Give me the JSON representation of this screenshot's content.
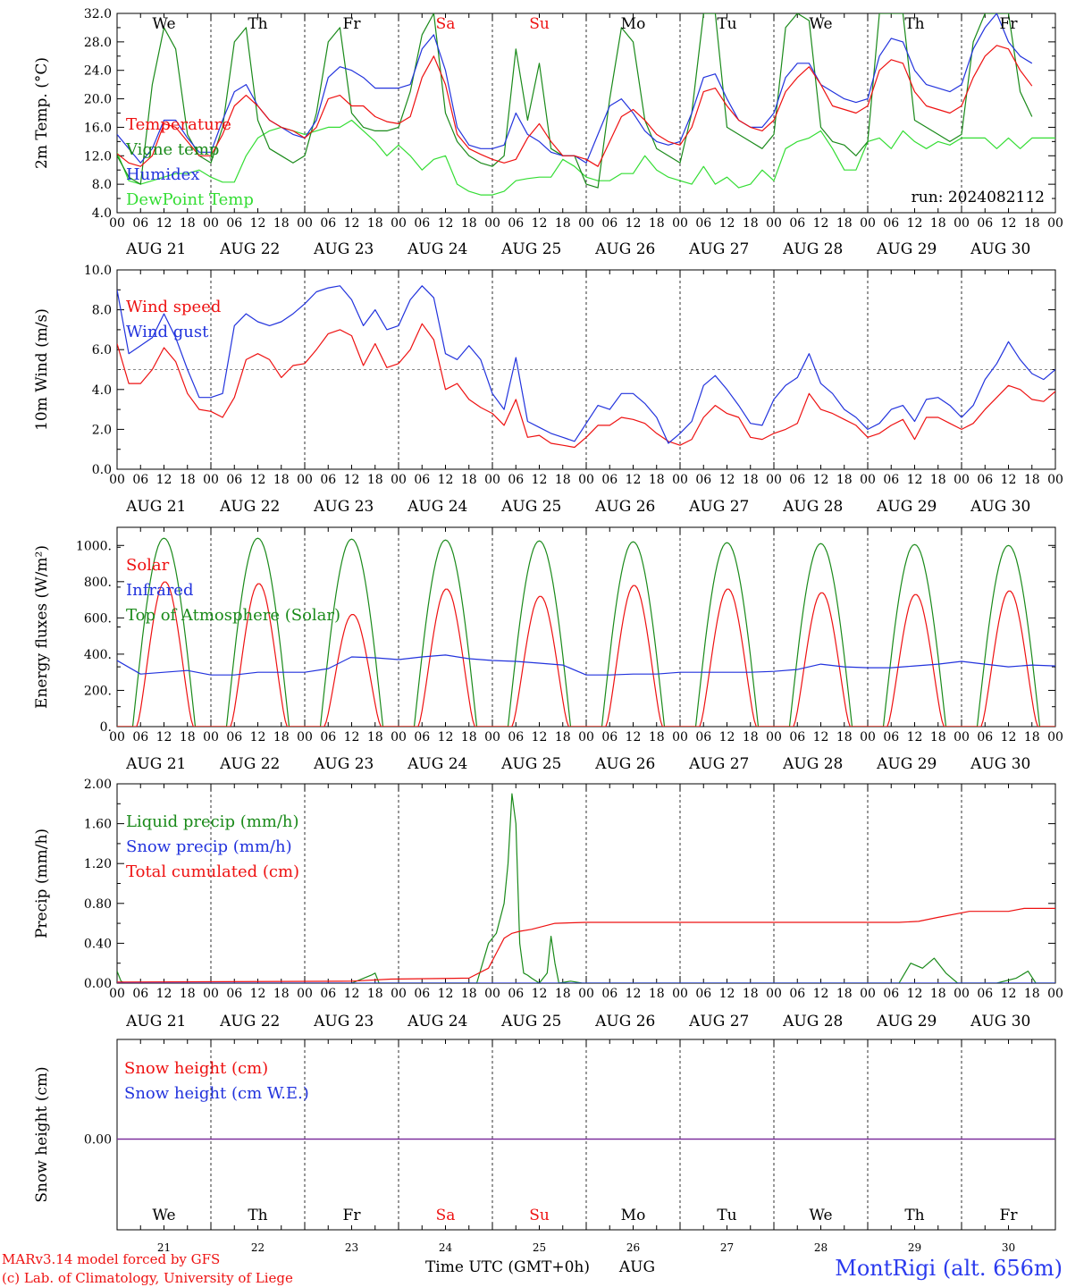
{
  "footer": {
    "model": "MARv3.14 model forced by GFS",
    "lab": "(c) Lab. of Climatology, University of Liege",
    "xaxis_title": "Time UTC (GMT+0h)",
    "month": "AUG",
    "station": "MontRigi (alt. 656m)"
  },
  "colors": {
    "red": "#ee1111",
    "blue": "#2233dd",
    "green": "#1a8a1a",
    "lightgreen": "#33dd33",
    "purple": "#7a2a9a",
    "weekend": "#ee1111"
  },
  "days": [
    {
      "dow": "We",
      "date": "AUG 21",
      "num": "21",
      "weekend": false
    },
    {
      "dow": "Th",
      "date": "AUG 22",
      "num": "22",
      "weekend": false
    },
    {
      "dow": "Fr",
      "date": "AUG 23",
      "num": "23",
      "weekend": false
    },
    {
      "dow": "Sa",
      "date": "AUG 24",
      "num": "24",
      "weekend": true
    },
    {
      "dow": "Su",
      "date": "AUG 25",
      "num": "25",
      "weekend": true
    },
    {
      "dow": "Mo",
      "date": "AUG 26",
      "num": "26",
      "weekend": false
    },
    {
      "dow": "Tu",
      "date": "AUG 27",
      "num": "27",
      "weekend": false
    },
    {
      "dow": "We",
      "date": "AUG 28",
      "num": "28",
      "weekend": false
    },
    {
      "dow": "Th",
      "date": "AUG 29",
      "num": "29",
      "weekend": false
    },
    {
      "dow": "Fr",
      "date": "AUG 30",
      "num": "30",
      "weekend": false
    }
  ],
  "hour_labels": [
    "00",
    "06",
    "12",
    "18"
  ],
  "chart_data": [
    {
      "type": "line",
      "ylabel": "2m Temp. (°C)",
      "ylim": [
        4,
        32
      ],
      "yticks": [
        "4.0",
        "8.0",
        "12.0",
        "16.0",
        "20.0",
        "24.0",
        "28.0",
        "32.0"
      ],
      "annotation": "run: 2024082112",
      "x_hours": [
        0,
        3,
        6,
        9,
        12,
        15,
        18,
        21,
        24,
        27,
        30,
        33,
        36,
        39,
        42,
        45,
        48,
        51,
        54,
        57,
        60,
        63,
        66,
        69,
        72,
        75,
        78,
        81,
        84,
        87,
        90,
        93,
        96,
        99,
        102,
        105,
        108,
        111,
        114,
        117,
        120,
        123,
        126,
        129,
        132,
        135,
        138,
        141,
        144,
        147,
        150,
        153,
        156,
        159,
        162,
        165,
        168,
        171,
        174,
        177,
        180,
        183,
        186,
        189,
        192,
        195,
        198,
        201,
        204,
        207,
        210,
        213,
        216,
        219,
        222,
        225,
        228,
        231,
        234,
        237,
        240
      ],
      "series": [
        {
          "name": "Temperature",
          "color": "red",
          "values": [
            12.3,
            11,
            10.5,
            12,
            16.5,
            16,
            14,
            12,
            12,
            15,
            19,
            20.5,
            19,
            17,
            16,
            15.5,
            14.5,
            16,
            20,
            20.5,
            19,
            19,
            17.5,
            16.8,
            16.5,
            17.5,
            23,
            26,
            22,
            15,
            13,
            12.2,
            11.5,
            11,
            11.5,
            14.5,
            16.5,
            14,
            12,
            12,
            11.5,
            10.5,
            14,
            17.5,
            18.5,
            17,
            15,
            14,
            13.5,
            16,
            21,
            21.5,
            19,
            17,
            16,
            15.5,
            17,
            21,
            23,
            24.5,
            22,
            19,
            18.5,
            18,
            19,
            24,
            25.5,
            25,
            21,
            19,
            18.5,
            18,
            19,
            23,
            26,
            27.5,
            27,
            24,
            21.8
          ]
        },
        {
          "name": "Vigne temp",
          "color": "green",
          "values": [
            12,
            9,
            8,
            22,
            30,
            27,
            15,
            12,
            11,
            16,
            28,
            30,
            17,
            13,
            12,
            11,
            12,
            18,
            28,
            30,
            18,
            16,
            15.5,
            15.5,
            16,
            21,
            29,
            32,
            18,
            14,
            12,
            11,
            10.5,
            12,
            27,
            17,
            25,
            13,
            12,
            12,
            8,
            7.5,
            20,
            30,
            28,
            17,
            13,
            12,
            11,
            18,
            32,
            32,
            16,
            15,
            14,
            13,
            15,
            30,
            32,
            31,
            16,
            14,
            13.5,
            12,
            14,
            32,
            32,
            32,
            17,
            16,
            15,
            14,
            15,
            28,
            32,
            32,
            32,
            21,
            17.5
          ]
        },
        {
          "name": "Humidex",
          "color": "blue",
          "values": [
            15,
            13,
            11,
            13,
            17,
            17,
            14.5,
            12.5,
            12.5,
            17,
            21,
            22,
            19,
            17,
            16,
            15,
            14.5,
            17,
            23,
            24.5,
            24,
            23,
            21.5,
            21.5,
            21.5,
            22,
            27,
            29,
            24,
            16,
            13.5,
            13,
            13,
            13.5,
            18,
            15,
            14,
            12.5,
            12,
            12,
            11,
            15,
            19,
            20,
            18,
            15.5,
            14,
            13.5,
            14,
            18,
            23,
            23.5,
            20,
            17,
            16,
            16,
            18,
            23,
            25,
            25,
            22,
            21,
            20,
            19.5,
            20,
            26,
            28.5,
            28,
            24,
            22,
            21.5,
            21,
            22,
            27,
            30,
            32,
            28,
            26,
            25
          ]
        },
        {
          "name": "DewPoint Temp",
          "color": "lightgreen",
          "values": [
            12.5,
            8.5,
            8,
            8.5,
            9,
            9.5,
            9.5,
            10,
            9,
            8.3,
            8.3,
            12,
            14.5,
            15.5,
            16,
            15.5,
            15,
            15.5,
            16,
            16,
            17,
            15.5,
            14,
            12,
            13.5,
            12,
            10,
            11.5,
            12,
            8,
            7,
            6.5,
            6.5,
            7,
            8.5,
            8.8,
            9,
            9,
            11.5,
            10.5,
            9,
            8.5,
            8.5,
            9.5,
            9.5,
            12,
            10,
            9,
            8.5,
            8,
            10.5,
            8,
            9,
            7.5,
            8,
            10,
            8.5,
            13,
            14,
            14.5,
            15.5,
            13,
            10,
            10,
            14,
            14.5,
            13,
            15.5,
            14,
            13,
            14,
            13.5,
            14.5,
            14.5,
            14.5,
            13,
            14.5,
            13,
            14.5,
            14.5,
            14.5
          ]
        }
      ]
    },
    {
      "type": "line",
      "ylabel": "10m Wind (m/s)",
      "ylim": [
        0,
        10
      ],
      "yticks": [
        "0.0",
        "2.0",
        "4.0",
        "6.0",
        "8.0",
        "10.0"
      ],
      "reference_line": 5,
      "x_hours": [
        0,
        3,
        6,
        9,
        12,
        15,
        18,
        21,
        24,
        27,
        30,
        33,
        36,
        39,
        42,
        45,
        48,
        51,
        54,
        57,
        60,
        63,
        66,
        69,
        72,
        75,
        78,
        81,
        84,
        87,
        90,
        93,
        96,
        99,
        102,
        105,
        108,
        111,
        114,
        117,
        120,
        123,
        126,
        129,
        132,
        135,
        138,
        141,
        144,
        147,
        150,
        153,
        156,
        159,
        162,
        165,
        168,
        171,
        174,
        177,
        180,
        183,
        186,
        189,
        192,
        195,
        198,
        201,
        204,
        207,
        210,
        213,
        216,
        219,
        222,
        225,
        228,
        231,
        234,
        237,
        240
      ],
      "series": [
        {
          "name": "Wind speed",
          "color": "red",
          "values": [
            6.3,
            4.3,
            4.3,
            5,
            6.1,
            5.4,
            3.8,
            3,
            2.9,
            2.6,
            3.6,
            5.5,
            5.8,
            5.5,
            4.6,
            5.2,
            5.3,
            6,
            6.8,
            7,
            6.7,
            5.2,
            6.3,
            5.1,
            5.3,
            6,
            7.3,
            6.5,
            4,
            4.3,
            3.5,
            3.1,
            2.8,
            2.2,
            3.5,
            1.6,
            1.7,
            1.3,
            1.2,
            1.1,
            1.6,
            2.2,
            2.2,
            2.6,
            2.5,
            2.3,
            1.8,
            1.4,
            1.2,
            1.5,
            2.6,
            3.2,
            2.8,
            2.6,
            1.6,
            1.5,
            1.8,
            2,
            2.3,
            3.8,
            3,
            2.8,
            2.5,
            2.2,
            1.6,
            1.8,
            2.2,
            2.5,
            1.5,
            2.6,
            2.6,
            2.3,
            2,
            2.3,
            3,
            3.6,
            4.2,
            4,
            3.5,
            3.4,
            3.9
          ]
        },
        {
          "name": "Wind gust",
          "color": "blue",
          "values": [
            9,
            5.8,
            6.2,
            6.6,
            7.8,
            6.6,
            5,
            3.6,
            3.6,
            3.8,
            7.2,
            7.8,
            7.4,
            7.2,
            7.4,
            7.8,
            8.3,
            8.9,
            9.1,
            9.2,
            8.5,
            7.2,
            8,
            7,
            7.2,
            8.5,
            9.2,
            8.6,
            5.8,
            5.5,
            6.2,
            5.5,
            3.8,
            3,
            5.6,
            2.4,
            2.1,
            1.8,
            1.6,
            1.4,
            2.3,
            3.2,
            3,
            3.8,
            3.8,
            3.3,
            2.6,
            1.3,
            1.8,
            2.4,
            4.2,
            4.7,
            4,
            3.2,
            2.3,
            2.2,
            3.5,
            4.2,
            4.6,
            5.8,
            4.3,
            3.8,
            3,
            2.6,
            2,
            2.3,
            3,
            3.2,
            2.4,
            3.5,
            3.6,
            3.2,
            2.6,
            3.2,
            4.5,
            5.3,
            6.4,
            5.5,
            4.8,
            4.5,
            5
          ]
        }
      ]
    },
    {
      "type": "line",
      "ylabel": "Energy fluxes (W/m²)",
      "ylim": [
        0,
        1100
      ],
      "yticks": [
        "0.",
        "200.",
        "400.",
        "600.",
        "800.",
        "1000."
      ],
      "series": [
        {
          "name": "Solar",
          "color": "red",
          "peaks": [
            800,
            790,
            620,
            760,
            720,
            780,
            760,
            740,
            730,
            750
          ]
        },
        {
          "name": "Infrared",
          "color": "blue",
          "x_hours": [
            0,
            6,
            12,
            18,
            24,
            30,
            36,
            42,
            48,
            54,
            60,
            66,
            72,
            78,
            84,
            90,
            96,
            102,
            108,
            114,
            120,
            126,
            132,
            138,
            144,
            150,
            156,
            162,
            168,
            174,
            180,
            186,
            192,
            198,
            204,
            210,
            216,
            222,
            228,
            234,
            240
          ],
          "values": [
            365,
            290,
            300,
            310,
            285,
            285,
            300,
            300,
            300,
            320,
            385,
            380,
            370,
            385,
            395,
            375,
            365,
            360,
            350,
            340,
            285,
            285,
            290,
            290,
            300,
            300,
            300,
            300,
            305,
            315,
            345,
            330,
            325,
            325,
            335,
            345,
            360,
            345,
            330,
            340,
            335
          ]
        },
        {
          "name": "Top of Atmosphere (Solar)",
          "color": "green",
          "peaks": [
            1040,
            1040,
            1035,
            1030,
            1025,
            1020,
            1015,
            1010,
            1005,
            1000
          ]
        }
      ]
    },
    {
      "type": "line",
      "ylabel": "Precip (mm/h)",
      "ylim": [
        0,
        2
      ],
      "yticks": [
        "0.00",
        "0.40",
        "0.80",
        "1.20",
        "1.60",
        "2.00"
      ],
      "series": [
        {
          "name": "Liquid precip (mm/h)",
          "color": "green",
          "x_hours": [
            0,
            1,
            2,
            60,
            65,
            66,
            67,
            92,
            95,
            97,
            99,
            100,
            101,
            102,
            103,
            104,
            105,
            106,
            108,
            110,
            111,
            112,
            113,
            116,
            119,
            200,
            203,
            206,
            209,
            212,
            215,
            216,
            225,
            230,
            233,
            235,
            240
          ],
          "values": [
            0.12,
            0.02,
            0,
            0,
            0.08,
            0.1,
            0,
            0,
            0.4,
            0.5,
            0.8,
            1.2,
            1.9,
            1.6,
            0.4,
            0.1,
            0.08,
            0.05,
            0,
            0.1,
            0.47,
            0.2,
            0,
            0.02,
            0,
            0,
            0.2,
            0.15,
            0.25,
            0.1,
            0,
            0,
            0,
            0.05,
            0.12,
            0,
            0
          ]
        },
        {
          "name": "Snow precip (mm/h)",
          "color": "blue",
          "x_hours": [
            0,
            240
          ],
          "values": [
            0,
            0
          ]
        },
        {
          "name": "Total cumulated (cm)",
          "color": "red",
          "x_hours": [
            0,
            60,
            70,
            90,
            95,
            97,
            99,
            101,
            103,
            106,
            108,
            112,
            120,
            200,
            205,
            210,
            218,
            228,
            232,
            240
          ],
          "values": [
            0.01,
            0.02,
            0.04,
            0.05,
            0.15,
            0.3,
            0.45,
            0.5,
            0.52,
            0.54,
            0.56,
            0.6,
            0.61,
            0.61,
            0.62,
            0.66,
            0.72,
            0.72,
            0.75,
            0.75
          ]
        }
      ]
    },
    {
      "type": "line",
      "ylabel": "Snow height (cm)",
      "yticks": [
        "0.00"
      ],
      "series": [
        {
          "name": "Snow height (cm)",
          "color": "red",
          "x_hours": [
            0,
            240
          ],
          "values": [
            0,
            0
          ]
        },
        {
          "name": "Snow height (cm W.E.)",
          "color": "blue",
          "x_hours": [
            0,
            240
          ],
          "values": [
            0,
            0
          ]
        }
      ]
    }
  ]
}
